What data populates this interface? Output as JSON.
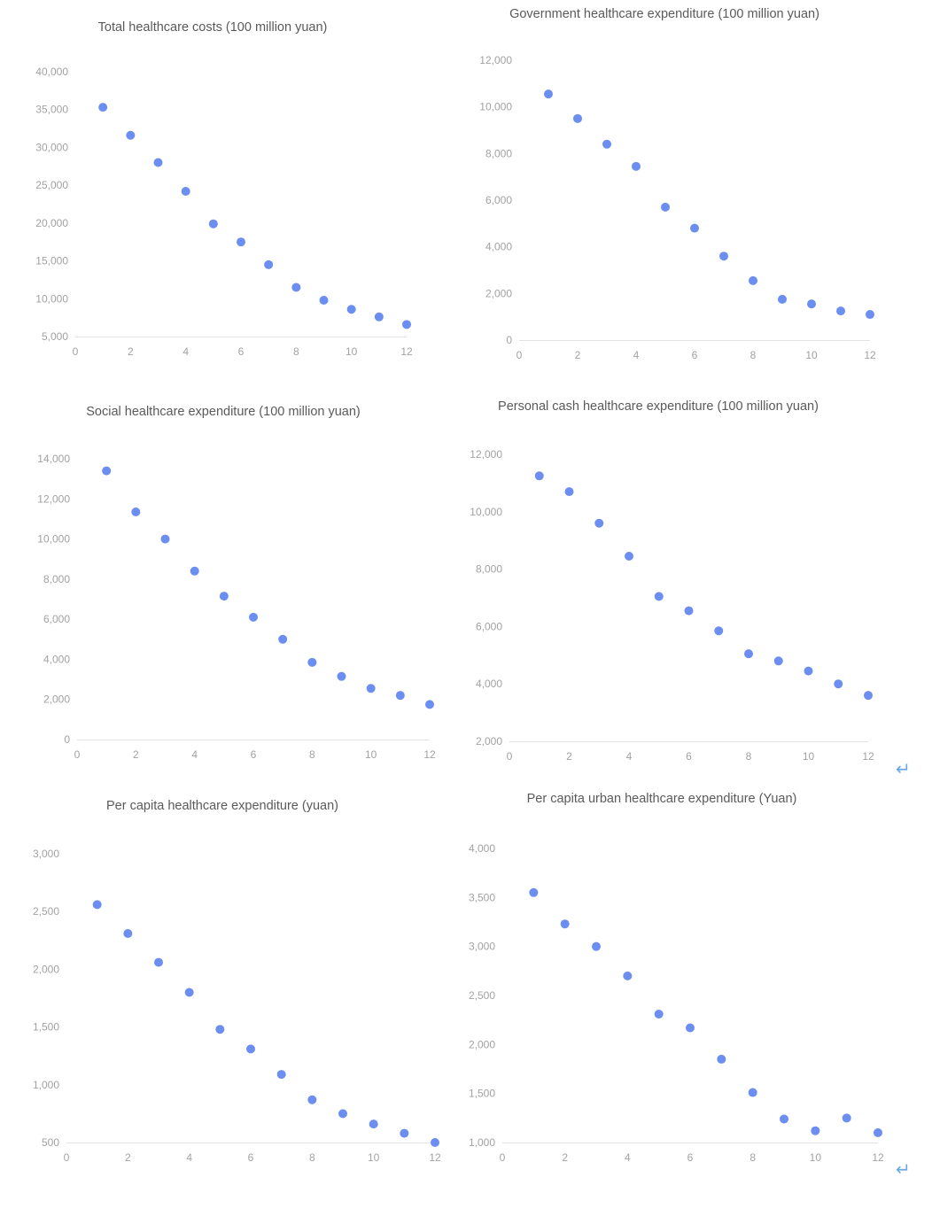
{
  "chart_data": [
    {
      "type": "scatter",
      "title": "Total healthcare costs (100 million yuan)",
      "x": [
        1,
        2,
        3,
        4,
        5,
        6,
        7,
        8,
        9,
        10,
        11,
        12
      ],
      "y": [
        35300,
        31600,
        28000,
        24200,
        19900,
        17500,
        14500,
        11500,
        9800,
        8600,
        7600,
        6600
      ],
      "xlim": [
        0,
        12
      ],
      "ylim": [
        5000,
        40000
      ],
      "xticks": [
        0,
        2,
        4,
        6,
        8,
        10,
        12
      ],
      "yticks": [
        5000,
        10000,
        15000,
        20000,
        25000,
        30000,
        35000,
        40000
      ],
      "xtick_labels": [
        "0",
        "2",
        "4",
        "6",
        "8",
        "10",
        "12"
      ],
      "ytick_labels": [
        "5,000",
        "10,000",
        "15,000",
        "20,000",
        "25,000",
        "30,000",
        "35,000",
        "40,000"
      ],
      "grid": false,
      "legend": "none",
      "color": "#6b8ef0"
    },
    {
      "type": "scatter",
      "title": "Government healthcare expenditure (100 million yuan)",
      "x": [
        1,
        2,
        3,
        4,
        5,
        6,
        7,
        8,
        9,
        10,
        11,
        12
      ],
      "y": [
        10550,
        9500,
        8400,
        7450,
        5700,
        4800,
        3600,
        2550,
        1750,
        1550,
        1250,
        1100
      ],
      "xlim": [
        0,
        12
      ],
      "ylim": [
        0,
        12000
      ],
      "xticks": [
        0,
        2,
        4,
        6,
        8,
        10,
        12
      ],
      "yticks": [
        0,
        2000,
        4000,
        6000,
        8000,
        10000,
        12000
      ],
      "xtick_labels": [
        "0",
        "2",
        "4",
        "6",
        "8",
        "10",
        "12"
      ],
      "ytick_labels": [
        "0",
        "2,000",
        "4,000",
        "6,000",
        "8,000",
        "10,000",
        "12,000"
      ],
      "grid": false,
      "legend": "none",
      "color": "#6b8ef0"
    },
    {
      "type": "scatter",
      "title": "Social healthcare expenditure (100 million yuan)",
      "x": [
        1,
        2,
        3,
        4,
        5,
        6,
        7,
        8,
        9,
        10,
        11,
        12
      ],
      "y": [
        13400,
        11350,
        10000,
        8400,
        7150,
        6100,
        5000,
        3850,
        3150,
        2550,
        2200,
        1750
      ],
      "xlim": [
        0,
        12
      ],
      "ylim": [
        0,
        14000
      ],
      "xticks": [
        0,
        2,
        4,
        6,
        8,
        10,
        12
      ],
      "yticks": [
        0,
        2000,
        4000,
        6000,
        8000,
        10000,
        12000,
        14000
      ],
      "xtick_labels": [
        "0",
        "2",
        "4",
        "6",
        "8",
        "10",
        "12"
      ],
      "ytick_labels": [
        "0",
        "2,000",
        "4,000",
        "6,000",
        "8,000",
        "10,000",
        "12,000",
        "14,000"
      ],
      "grid": false,
      "legend": "none",
      "color": "#6b8ef0"
    },
    {
      "type": "scatter",
      "title": "Personal cash healthcare expenditure (100 million yuan)",
      "x": [
        1,
        2,
        3,
        4,
        5,
        6,
        7,
        8,
        9,
        10,
        11,
        12
      ],
      "y": [
        11250,
        10700,
        9600,
        8450,
        7050,
        6550,
        5850,
        5050,
        4800,
        4450,
        4000,
        3600
      ],
      "xlim": [
        0,
        12
      ],
      "ylim": [
        2000,
        12000
      ],
      "xticks": [
        0,
        2,
        4,
        6,
        8,
        10,
        12
      ],
      "yticks": [
        2000,
        4000,
        6000,
        8000,
        10000,
        12000
      ],
      "xtick_labels": [
        "0",
        "2",
        "4",
        "6",
        "8",
        "10",
        "12"
      ],
      "ytick_labels": [
        "2,000",
        "4,000",
        "6,000",
        "8,000",
        "10,000",
        "12,000"
      ],
      "grid": false,
      "legend": "none",
      "color": "#6b8ef0"
    },
    {
      "type": "scatter",
      "title": "Per capita healthcare expenditure (yuan)",
      "x": [
        1,
        2,
        3,
        4,
        5,
        6,
        7,
        8,
        9,
        10,
        11,
        12
      ],
      "y": [
        2560,
        2310,
        2060,
        1800,
        1480,
        1310,
        1090,
        870,
        750,
        660,
        580,
        500
      ],
      "xlim": [
        0,
        12
      ],
      "ylim": [
        500,
        3000
      ],
      "xticks": [
        0,
        2,
        4,
        6,
        8,
        10,
        12
      ],
      "yticks": [
        500,
        1000,
        1500,
        2000,
        2500,
        3000
      ],
      "xtick_labels": [
        "0",
        "2",
        "4",
        "6",
        "8",
        "10",
        "12"
      ],
      "ytick_labels": [
        "500",
        "1,000",
        "1,500",
        "2,000",
        "2,500",
        "3,000"
      ],
      "grid": false,
      "legend": "none",
      "color": "#6b8ef0"
    },
    {
      "type": "scatter",
      "title": "Per capita urban healthcare expenditure (Yuan)",
      "x": [
        1,
        2,
        3,
        4,
        5,
        6,
        7,
        8,
        9,
        10,
        11,
        12
      ],
      "y": [
        3550,
        3230,
        3000,
        2700,
        2310,
        2170,
        1850,
        1510,
        1240,
        1120,
        1250,
        1100
      ],
      "xlim": [
        0,
        12
      ],
      "ylim": [
        1000,
        4000
      ],
      "xticks": [
        0,
        2,
        4,
        6,
        8,
        10,
        12
      ],
      "yticks": [
        1000,
        1500,
        2000,
        2500,
        3000,
        3500,
        4000
      ],
      "xtick_labels": [
        "0",
        "2",
        "4",
        "6",
        "8",
        "10",
        "12"
      ],
      "ytick_labels": [
        "1,000",
        "1,500",
        "2,000",
        "2,500",
        "3,000",
        "3,500",
        "4,000"
      ],
      "grid": false,
      "legend": "none",
      "color": "#6b8ef0"
    }
  ],
  "icons": [
    "return-arrow-icon",
    "return-arrow-icon"
  ],
  "return_glyph": "↵"
}
